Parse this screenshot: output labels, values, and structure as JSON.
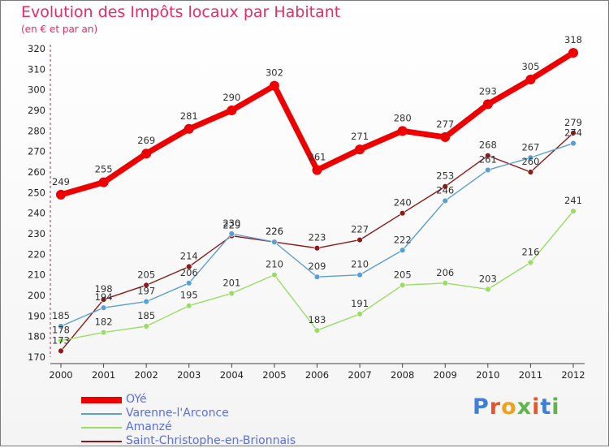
{
  "title": "Evolution des Impôts locaux par Habitant",
  "subtitle": "(en € et par an)",
  "logo": {
    "letters": [
      "P",
      "r",
      "o",
      "x",
      "i",
      "t",
      "i"
    ],
    "colors": [
      "#3f7fd6",
      "#e8542b",
      "#f1a01c",
      "#5fb54a",
      "#e8542b",
      "#3f7fd6",
      "#5fb54a"
    ]
  },
  "chart_data": {
    "type": "line",
    "title": "Evolution des Impôts locaux par Habitant",
    "ylabel": "(en € et par an)",
    "xlabel": "",
    "x": [
      "2000",
      "2001",
      "2002",
      "2003",
      "2004",
      "2005",
      "2006",
      "2007",
      "2008",
      "2009",
      "2010",
      "2011",
      "2012"
    ],
    "ylim": [
      170,
      320
    ],
    "yticks": [
      "170",
      "180",
      "190",
      "200",
      "210",
      "220",
      "230",
      "240",
      "250",
      "260",
      "270",
      "280",
      "290",
      "300",
      "310",
      "320"
    ],
    "grid": false,
    "legend_position": "bottom-left",
    "series": [
      {
        "name": "OYé",
        "color": "#ee0000",
        "values": [
          249,
          255,
          269,
          281,
          290,
          302,
          261,
          271,
          280,
          277,
          293,
          305,
          318
        ]
      },
      {
        "name": "Varenne-l'Arconce",
        "color": "#5a9fd4",
        "values": [
          185,
          194,
          197,
          206,
          230,
          226,
          209,
          210,
          222,
          246,
          261,
          267,
          274
        ]
      },
      {
        "name": "Amanzé",
        "color": "#99dd66",
        "values": [
          178,
          182,
          185,
          195,
          201,
          210,
          183,
          191,
          205,
          206,
          203,
          216,
          241
        ]
      },
      {
        "name": "Saint-Christophe-en-Brionnais",
        "color": "#8b1a1a",
        "values": [
          173,
          198,
          205,
          214,
          229,
          226,
          223,
          227,
          240,
          253,
          268,
          260,
          279
        ]
      }
    ]
  }
}
